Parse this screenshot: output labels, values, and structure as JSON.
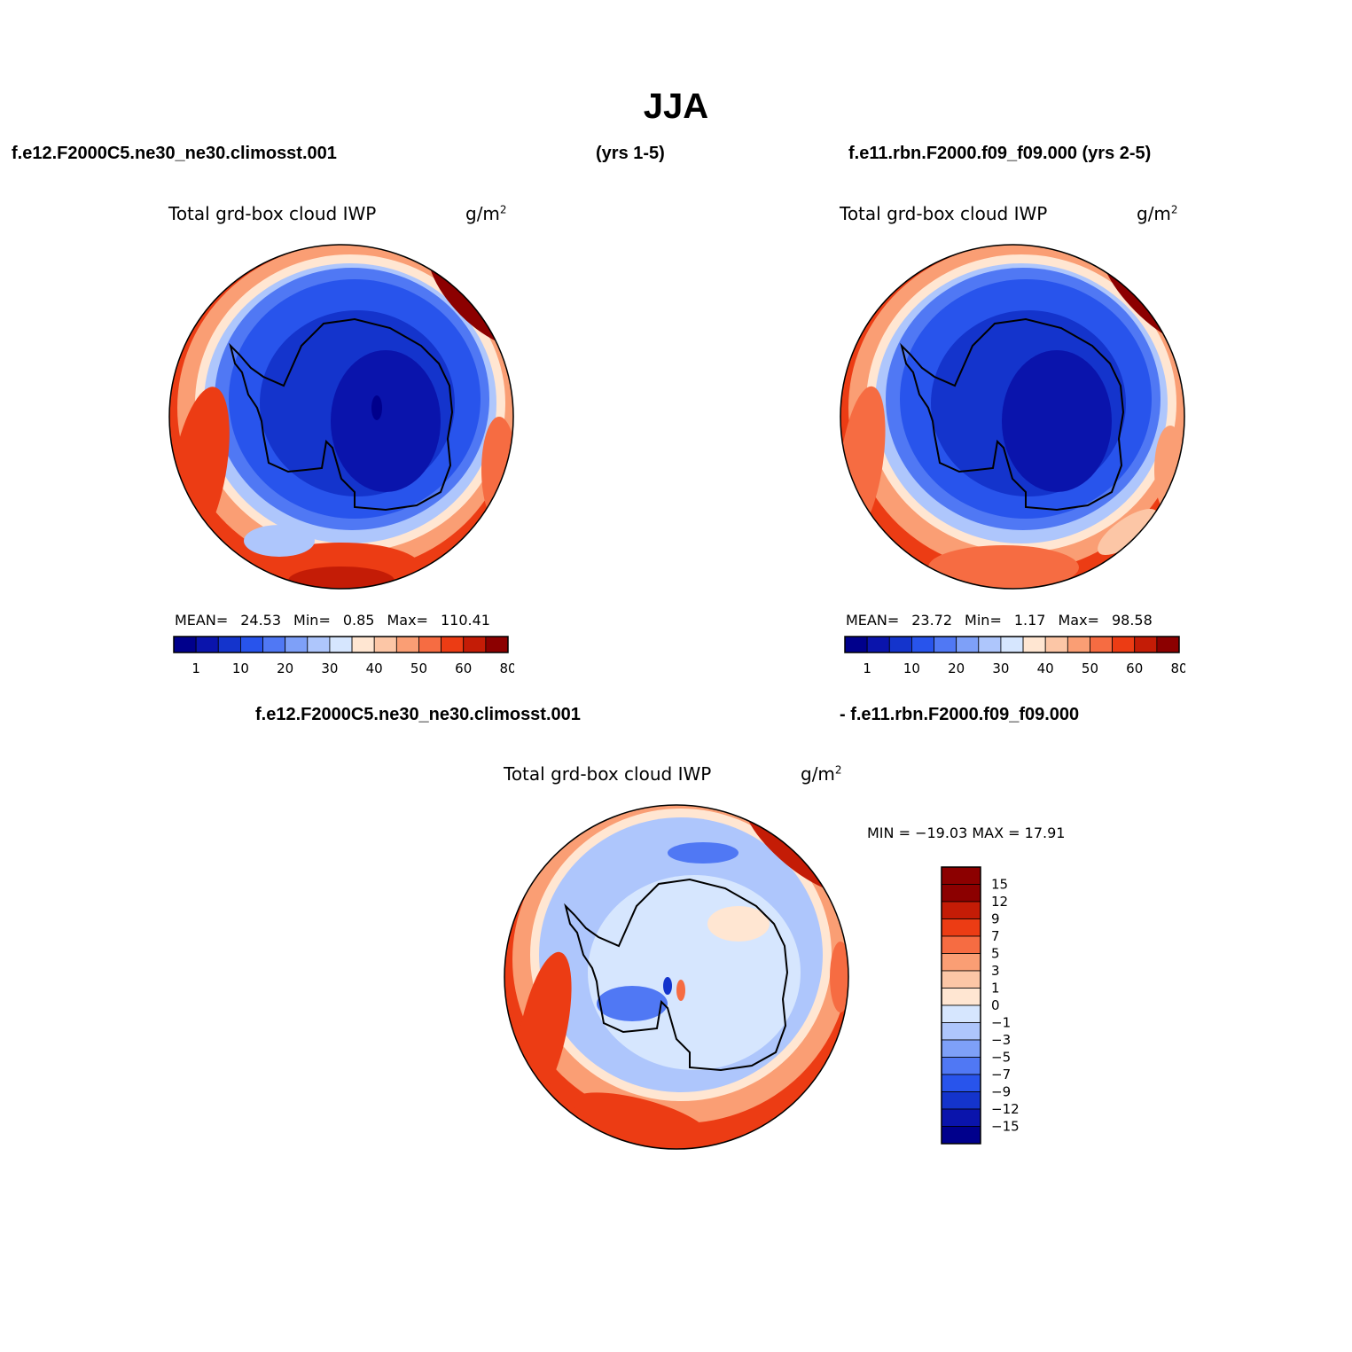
{
  "title": "JJA",
  "case_a": "f.e12.F2000C5.ne30_ne30.climosst.001",
  "case_a_years": "(yrs 1-5)",
  "case_b": "f.e11.rbn.F2000.f09_f09.000 (yrs 2-5)",
  "diff_case_a": "f.e12.F2000C5.ne30_ne30.climosst.001",
  "diff_case_b": "- f.e11.rbn.F2000.f09_f09.000",
  "colors": {
    "abs_levels": [
      "#00008c",
      "#0a14ac",
      "#1434cc",
      "#2854ec",
      "#5078f4",
      "#7ea0f8",
      "#aec6fc",
      "#d6e6fe",
      "#ffe6d2",
      "#fcc6a6",
      "#fa9e74",
      "#f66c42",
      "#ec3c14",
      "#c41c06",
      "#8c0000"
    ],
    "diff_levels": [
      "#00008c",
      "#0a14ac",
      "#1434cc",
      "#2854ec",
      "#5078f4",
      "#7ea0f8",
      "#aec6fc",
      "#d6e6fe",
      "#ffe6d2",
      "#fcc6a6",
      "#fa9e74",
      "#f66c42",
      "#ec3c14",
      "#c41c06",
      "#8c0000"
    ],
    "coast": "#000000"
  },
  "chart_data": [
    {
      "type": "heatmap",
      "panel": "case_a",
      "projection": "south-polar-stereographic",
      "title": "Total grd-box cloud IWP",
      "units_base": "g/m",
      "units_exp": "2",
      "stats": {
        "mean_label": "MEAN=",
        "mean": "24.53",
        "min_label": "Min=",
        "min": "0.85",
        "max_label": "Max=",
        "max": "110.41"
      },
      "colorbar_labels": [
        "1",
        "10",
        "20",
        "30",
        "40",
        "50",
        "60",
        "80"
      ],
      "pattern": "low values (<10) over Antarctic plateau, 10-30 over surrounding ocean, 50-80+ in mid-latitude storm-track ring",
      "interior_min_region": "East Antarctic plateau"
    },
    {
      "type": "heatmap",
      "panel": "case_b",
      "projection": "south-polar-stereographic",
      "title": "Total grd-box cloud IWP",
      "units_base": "g/m",
      "units_exp": "2",
      "stats": {
        "mean_label": "MEAN=",
        "mean": "23.72",
        "min_label": "Min=",
        "min": "1.17",
        "max_label": "Max=",
        "max": "98.58"
      },
      "colorbar_labels": [
        "1",
        "10",
        "20",
        "30",
        "40",
        "50",
        "60",
        "80"
      ],
      "pattern": "low values over Antarctica, mid-latitude ring of 40-80",
      "interior_min_region": "East Antarctic plateau"
    },
    {
      "type": "heatmap",
      "panel": "difference",
      "projection": "south-polar-stereographic",
      "title": "Total grd-box cloud IWP",
      "units_base": "g/m",
      "units_exp": "2",
      "minmax": "MIN = −19.03 MAX =   17.91",
      "colorbar_labels": [
        "15",
        "12",
        "9",
        "7",
        "5",
        "3",
        "1",
        "0",
        "−1",
        "−3",
        "−5",
        "−7",
        "−9",
        "−12",
        "−15"
      ],
      "pattern": "slightly negative over Antarctica and near ocean, positive 5-15 in mid-latitude ring"
    }
  ]
}
